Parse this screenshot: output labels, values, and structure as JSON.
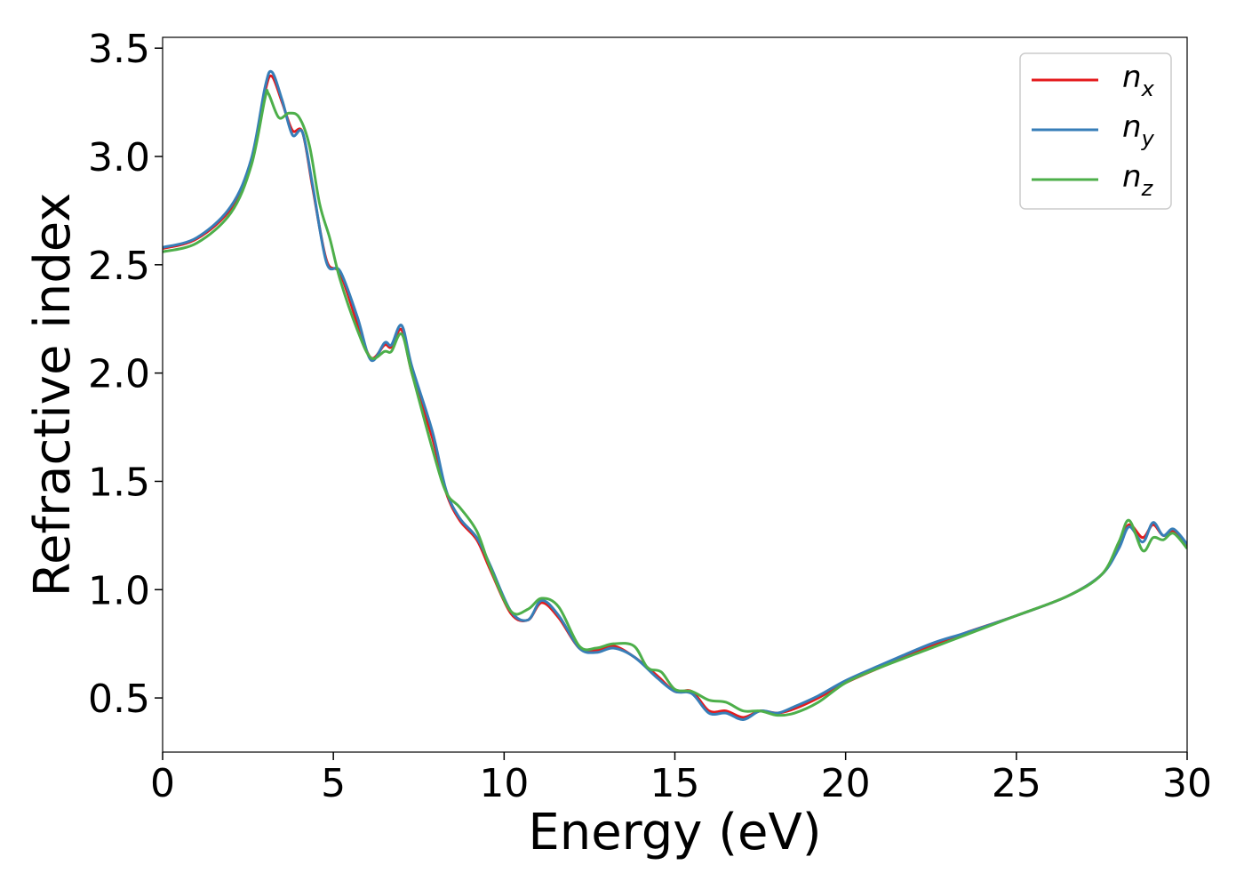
{
  "chart_data": {
    "type": "line",
    "xlabel": "Energy (eV)",
    "ylabel": "Refractive index",
    "xlim": [
      0,
      30
    ],
    "ylim": [
      0.25,
      3.55
    ],
    "xticks": [
      0,
      5,
      10,
      15,
      20,
      25,
      30
    ],
    "xtick_labels": [
      "0",
      "5",
      "10",
      "15",
      "20",
      "25",
      "30"
    ],
    "yticks": [
      0.5,
      1.0,
      1.5,
      2.0,
      2.5,
      3.0,
      3.5
    ],
    "ytick_labels": [
      "0.5",
      "1.0",
      "1.5",
      "2.0",
      "2.5",
      "3.0",
      "3.5"
    ],
    "grid": false,
    "legend_position": "top-right",
    "series": [
      {
        "name": "n_x",
        "legend_main": "n",
        "legend_sub": "x",
        "color": "#e41a1c",
        "points": [
          [
            0,
            2.575
          ],
          [
            1,
            2.62
          ],
          [
            2,
            2.76
          ],
          [
            2.6,
            2.98
          ],
          [
            3.0,
            3.3
          ],
          [
            3.2,
            3.37
          ],
          [
            3.5,
            3.25
          ],
          [
            3.8,
            3.12
          ],
          [
            4.1,
            3.11
          ],
          [
            4.4,
            2.85
          ],
          [
            4.8,
            2.52
          ],
          [
            5.2,
            2.46
          ],
          [
            5.7,
            2.23
          ],
          [
            6.1,
            2.07
          ],
          [
            6.5,
            2.13
          ],
          [
            6.7,
            2.12
          ],
          [
            7.0,
            2.2
          ],
          [
            7.3,
            2.0
          ],
          [
            7.9,
            1.7
          ],
          [
            8.3,
            1.45
          ],
          [
            8.7,
            1.32
          ],
          [
            9.2,
            1.23
          ],
          [
            9.6,
            1.09
          ],
          [
            10.2,
            0.89
          ],
          [
            10.7,
            0.86
          ],
          [
            11.1,
            0.94
          ],
          [
            11.6,
            0.87
          ],
          [
            12.2,
            0.73
          ],
          [
            12.7,
            0.72
          ],
          [
            13.2,
            0.74
          ],
          [
            13.8,
            0.69
          ],
          [
            14.5,
            0.6
          ],
          [
            15.0,
            0.53
          ],
          [
            15.5,
            0.53
          ],
          [
            16.0,
            0.44
          ],
          [
            16.5,
            0.44
          ],
          [
            17.0,
            0.41
          ],
          [
            17.5,
            0.44
          ],
          [
            18.0,
            0.43
          ],
          [
            18.5,
            0.45
          ],
          [
            19.2,
            0.5
          ],
          [
            20.0,
            0.57
          ],
          [
            21.0,
            0.64
          ],
          [
            22.5,
            0.74
          ],
          [
            23.5,
            0.8
          ],
          [
            25.0,
            0.88
          ],
          [
            26.5,
            0.97
          ],
          [
            27.5,
            1.07
          ],
          [
            28.0,
            1.2
          ],
          [
            28.3,
            1.3
          ],
          [
            28.7,
            1.24
          ],
          [
            29.0,
            1.3
          ],
          [
            29.3,
            1.25
          ],
          [
            29.6,
            1.27
          ],
          [
            30.0,
            1.2
          ]
        ]
      },
      {
        "name": "n_y",
        "legend_main": "n",
        "legend_sub": "y",
        "color": "#377eb8",
        "points": [
          [
            0,
            2.58
          ],
          [
            1,
            2.625
          ],
          [
            2,
            2.77
          ],
          [
            2.6,
            2.99
          ],
          [
            3.0,
            3.32
          ],
          [
            3.2,
            3.39
          ],
          [
            3.5,
            3.26
          ],
          [
            3.8,
            3.1
          ],
          [
            4.1,
            3.11
          ],
          [
            4.4,
            2.86
          ],
          [
            4.8,
            2.51
          ],
          [
            5.2,
            2.47
          ],
          [
            5.7,
            2.26
          ],
          [
            6.1,
            2.06
          ],
          [
            6.5,
            2.14
          ],
          [
            6.7,
            2.13
          ],
          [
            7.0,
            2.22
          ],
          [
            7.3,
            2.03
          ],
          [
            7.9,
            1.73
          ],
          [
            8.3,
            1.46
          ],
          [
            8.7,
            1.33
          ],
          [
            9.2,
            1.24
          ],
          [
            9.6,
            1.11
          ],
          [
            10.2,
            0.9
          ],
          [
            10.7,
            0.86
          ],
          [
            11.1,
            0.95
          ],
          [
            11.6,
            0.88
          ],
          [
            12.2,
            0.73
          ],
          [
            12.7,
            0.71
          ],
          [
            13.2,
            0.73
          ],
          [
            13.8,
            0.69
          ],
          [
            14.5,
            0.59
          ],
          [
            15.0,
            0.53
          ],
          [
            15.5,
            0.52
          ],
          [
            16.0,
            0.43
          ],
          [
            16.5,
            0.43
          ],
          [
            17.0,
            0.4
          ],
          [
            17.5,
            0.44
          ],
          [
            18.0,
            0.43
          ],
          [
            18.5,
            0.46
          ],
          [
            19.2,
            0.51
          ],
          [
            20.0,
            0.58
          ],
          [
            21.0,
            0.65
          ],
          [
            22.5,
            0.75
          ],
          [
            23.5,
            0.8
          ],
          [
            25.0,
            0.88
          ],
          [
            26.5,
            0.97
          ],
          [
            27.5,
            1.07
          ],
          [
            28.0,
            1.19
          ],
          [
            28.3,
            1.29
          ],
          [
            28.7,
            1.22
          ],
          [
            29.0,
            1.31
          ],
          [
            29.3,
            1.25
          ],
          [
            29.6,
            1.28
          ],
          [
            30.0,
            1.21
          ]
        ]
      },
      {
        "name": "n_z",
        "legend_main": "n",
        "legend_sub": "z",
        "color": "#4daf4a",
        "points": [
          [
            0,
            2.56
          ],
          [
            1,
            2.6
          ],
          [
            2,
            2.74
          ],
          [
            2.6,
            2.96
          ],
          [
            3.0,
            3.27
          ],
          [
            3.1,
            3.29
          ],
          [
            3.4,
            3.18
          ],
          [
            3.7,
            3.2
          ],
          [
            4.0,
            3.18
          ],
          [
            4.3,
            3.05
          ],
          [
            4.6,
            2.78
          ],
          [
            4.9,
            2.62
          ],
          [
            5.2,
            2.43
          ],
          [
            5.7,
            2.2
          ],
          [
            6.1,
            2.07
          ],
          [
            6.5,
            2.1
          ],
          [
            6.7,
            2.1
          ],
          [
            7.0,
            2.18
          ],
          [
            7.3,
            2.0
          ],
          [
            7.9,
            1.65
          ],
          [
            8.3,
            1.45
          ],
          [
            8.7,
            1.38
          ],
          [
            9.2,
            1.27
          ],
          [
            9.6,
            1.1
          ],
          [
            10.2,
            0.9
          ],
          [
            10.7,
            0.91
          ],
          [
            11.1,
            0.96
          ],
          [
            11.6,
            0.92
          ],
          [
            12.2,
            0.74
          ],
          [
            12.7,
            0.73
          ],
          [
            13.2,
            0.75
          ],
          [
            13.8,
            0.74
          ],
          [
            14.2,
            0.64
          ],
          [
            14.6,
            0.62
          ],
          [
            15.0,
            0.54
          ],
          [
            15.5,
            0.53
          ],
          [
            16.0,
            0.49
          ],
          [
            16.5,
            0.48
          ],
          [
            17.0,
            0.44
          ],
          [
            17.5,
            0.44
          ],
          [
            18.0,
            0.42
          ],
          [
            18.5,
            0.43
          ],
          [
            19.2,
            0.48
          ],
          [
            20.0,
            0.57
          ],
          [
            21.0,
            0.64
          ],
          [
            22.5,
            0.73
          ],
          [
            23.5,
            0.79
          ],
          [
            25.0,
            0.88
          ],
          [
            26.5,
            0.97
          ],
          [
            27.5,
            1.07
          ],
          [
            28.0,
            1.22
          ],
          [
            28.3,
            1.32
          ],
          [
            28.7,
            1.18
          ],
          [
            29.0,
            1.24
          ],
          [
            29.3,
            1.23
          ],
          [
            29.6,
            1.26
          ],
          [
            30.0,
            1.19
          ]
        ]
      }
    ]
  }
}
